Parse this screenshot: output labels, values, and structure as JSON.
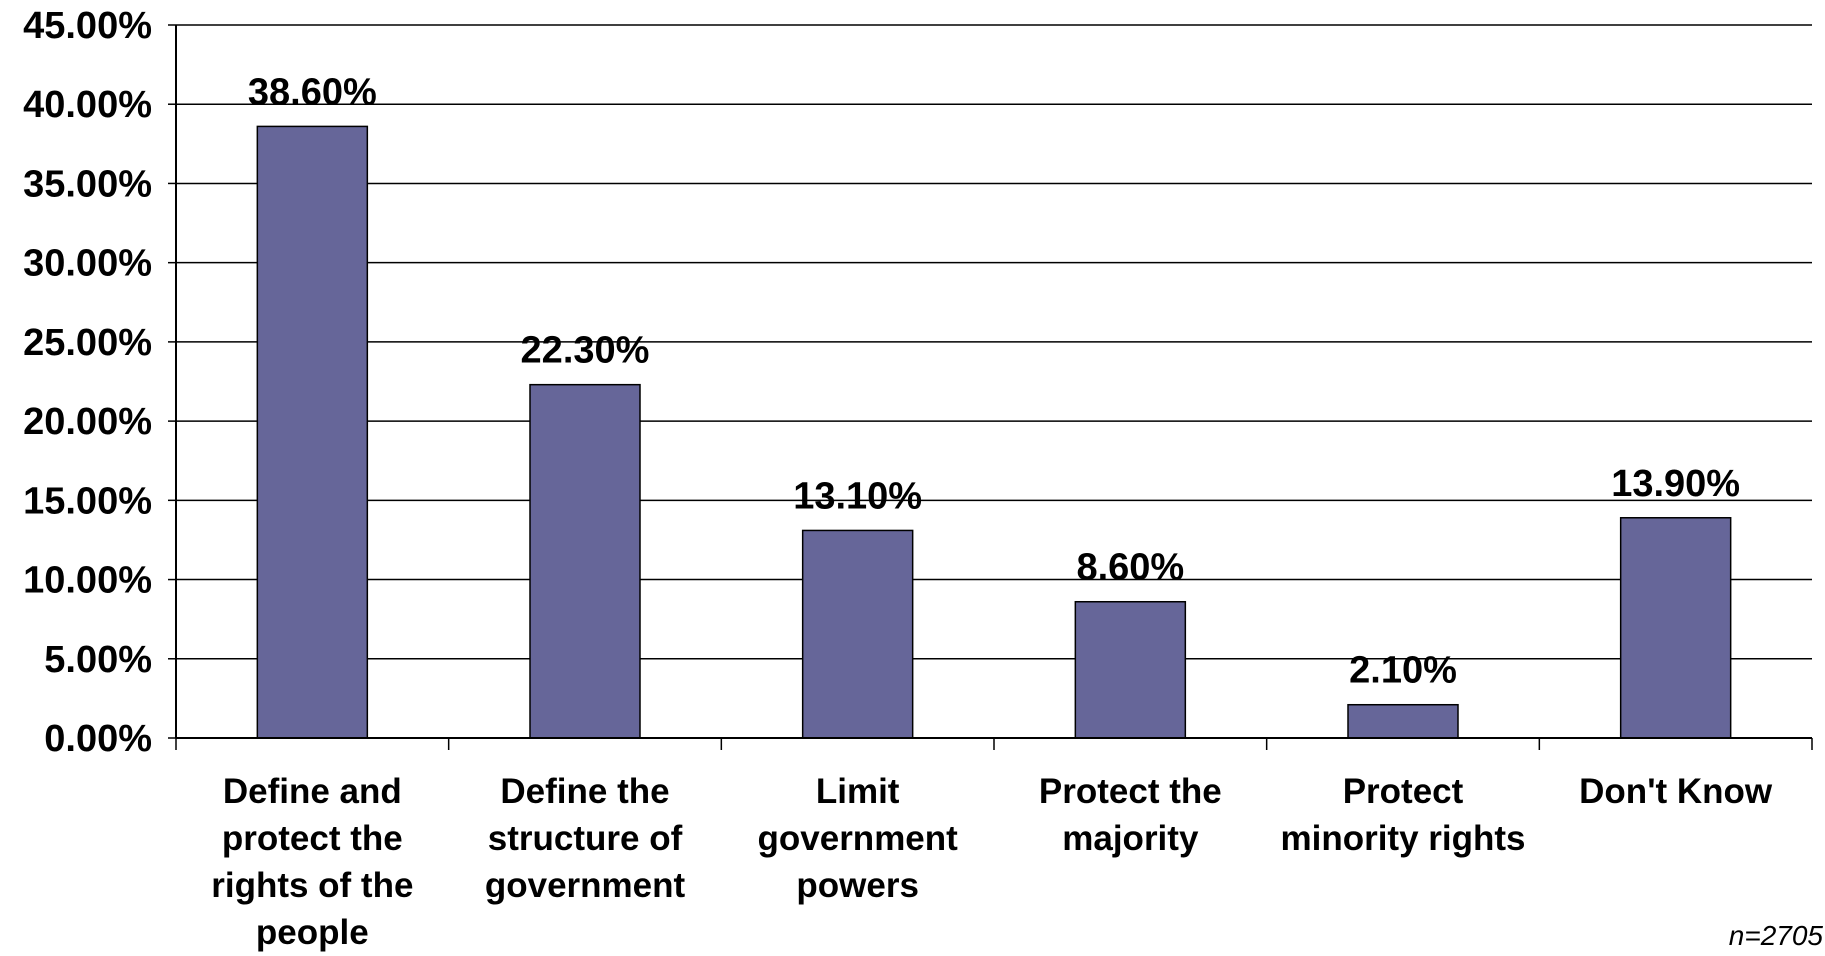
{
  "chart_data": {
    "type": "bar",
    "categories": [
      "Define and protect the rights of the people",
      "Define the structure of government",
      "Limit government powers",
      "Protect the majority",
      "Protect minority rights",
      "Don't Know"
    ],
    "values": [
      38.6,
      22.3,
      13.1,
      8.6,
      2.1,
      13.9
    ],
    "data_labels": [
      "38.60%",
      "22.30%",
      "13.10%",
      "8.60%",
      "2.10%",
      "13.90%"
    ],
    "ylim": [
      0,
      45
    ],
    "y_ticks": [
      0,
      5,
      10,
      15,
      20,
      25,
      30,
      35,
      40,
      45
    ],
    "y_tick_labels": [
      "0.00%",
      "5.00%",
      "10.00%",
      "15.00%",
      "20.00%",
      "25.00%",
      "30.00%",
      "35.00%",
      "40.00%",
      "45.00%"
    ],
    "grid": "horizontal",
    "legend": "none",
    "bar_color": "#666699",
    "note": "n=2705"
  }
}
